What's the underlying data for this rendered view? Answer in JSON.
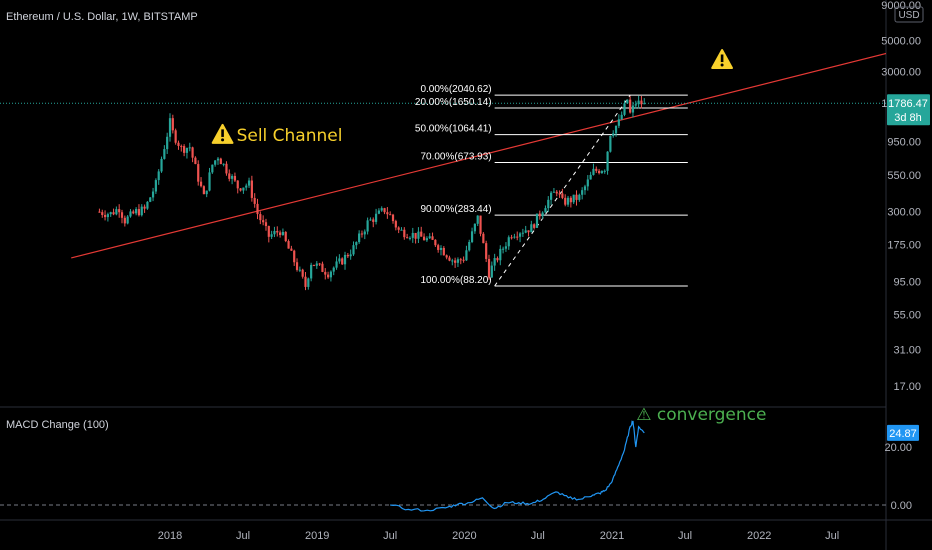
{
  "header": {
    "title": "Ethereum / U.S. Dollar, 1W, BITSTAMP",
    "currency": "USD"
  },
  "colors": {
    "background": "#000000",
    "candle_up": "#26a69a",
    "candle_down": "#ef5350",
    "trendline": "#e53935",
    "fib_lines": "#ffffff",
    "macd": "#2196f3",
    "last_price_badge": "#26a69a",
    "indicator_badge": "#2196f3",
    "warning": "#f7d02c",
    "convergence_text": "#4caf50"
  },
  "chart_data": [
    {
      "type": "candlestick",
      "title": "Ethereum / U.S. Dollar, 1W, BITSTAMP",
      "scale": "log",
      "ylim": [
        12,
        9000
      ],
      "xlim": [
        "2017-07-10",
        "2022-12-31"
      ],
      "y_ticks": [
        "9000.00",
        "5000.00",
        "3000.00",
        "1800.00",
        "950.00",
        "550.00",
        "300.00",
        "175.00",
        "95.00",
        "55.00",
        "31.00",
        "17.00"
      ],
      "y_tick_values": [
        9000,
        5000,
        3000,
        1800,
        950,
        550,
        300,
        175,
        95,
        55,
        31,
        17
      ],
      "x_ticks": [
        {
          "date": "2018-01-01",
          "label": "2018"
        },
        {
          "date": "2018-07-01",
          "label": "Jul"
        },
        {
          "date": "2019-01-01",
          "label": "2019"
        },
        {
          "date": "2019-07-01",
          "label": "Jul"
        },
        {
          "date": "2020-01-01",
          "label": "2020"
        },
        {
          "date": "2020-07-01",
          "label": "Jul"
        },
        {
          "date": "2021-01-01",
          "label": "2021"
        },
        {
          "date": "2021-07-01",
          "label": "Jul"
        },
        {
          "date": "2022-01-01",
          "label": "2022"
        },
        {
          "date": "2022-07-01",
          "label": "Jul"
        }
      ],
      "grid": false,
      "price_path": [
        {
          "date": "2017-07-10",
          "close": 300
        },
        {
          "date": "2017-08-14",
          "close": 290
        },
        {
          "date": "2017-09-04",
          "close": 320
        },
        {
          "date": "2017-09-18",
          "close": 260
        },
        {
          "date": "2017-10-16",
          "close": 300
        },
        {
          "date": "2017-11-06",
          "close": 310
        },
        {
          "date": "2017-12-04",
          "close": 470
        },
        {
          "date": "2017-12-18",
          "close": 720
        },
        {
          "date": "2018-01-08",
          "close": 1300
        },
        {
          "date": "2018-01-15",
          "close": 1100
        },
        {
          "date": "2018-02-05",
          "close": 850
        },
        {
          "date": "2018-02-26",
          "close": 870
        },
        {
          "date": "2018-03-19",
          "close": 520
        },
        {
          "date": "2018-04-02",
          "close": 380
        },
        {
          "date": "2018-04-23",
          "close": 650
        },
        {
          "date": "2018-05-07",
          "close": 750
        },
        {
          "date": "2018-05-28",
          "close": 600
        },
        {
          "date": "2018-06-25",
          "close": 450
        },
        {
          "date": "2018-07-23",
          "close": 470
        },
        {
          "date": "2018-08-13",
          "close": 290
        },
        {
          "date": "2018-09-10",
          "close": 200
        },
        {
          "date": "2018-10-08",
          "close": 220
        },
        {
          "date": "2018-11-19",
          "close": 120
        },
        {
          "date": "2018-12-10",
          "close": 88
        },
        {
          "date": "2018-12-24",
          "close": 130
        },
        {
          "date": "2019-02-04",
          "close": 110
        },
        {
          "date": "2019-03-11",
          "close": 135
        },
        {
          "date": "2019-04-08",
          "close": 165
        },
        {
          "date": "2019-05-13",
          "close": 250
        },
        {
          "date": "2019-06-24",
          "close": 310
        },
        {
          "date": "2019-07-08",
          "close": 280
        },
        {
          "date": "2019-07-29",
          "close": 220
        },
        {
          "date": "2019-09-16",
          "close": 200
        },
        {
          "date": "2019-10-28",
          "close": 180
        },
        {
          "date": "2019-12-16",
          "close": 130
        },
        {
          "date": "2020-01-06",
          "close": 140
        },
        {
          "date": "2020-02-10",
          "close": 270
        },
        {
          "date": "2020-03-09",
          "close": 110
        },
        {
          "date": "2020-03-23",
          "close": 130
        },
        {
          "date": "2020-05-04",
          "close": 210
        },
        {
          "date": "2020-06-22",
          "close": 230
        },
        {
          "date": "2020-07-27",
          "close": 340
        },
        {
          "date": "2020-08-24",
          "close": 430
        },
        {
          "date": "2020-09-07",
          "close": 350
        },
        {
          "date": "2020-10-19",
          "close": 380
        },
        {
          "date": "2020-11-23",
          "close": 580
        },
        {
          "date": "2020-12-21",
          "close": 620
        },
        {
          "date": "2021-01-04",
          "close": 1100
        },
        {
          "date": "2021-01-25",
          "close": 1300
        },
        {
          "date": "2021-02-15",
          "close": 1900
        },
        {
          "date": "2021-02-22",
          "close": 1500
        },
        {
          "date": "2021-03-08",
          "close": 1800
        },
        {
          "date": "2021-03-22",
          "close": 1786.47
        }
      ],
      "last_price": "1786.47",
      "countdown": "3d 8h",
      "annotations": [
        {
          "text": "Sell Channel",
          "date": "2018-06-25",
          "price": 900
        },
        {
          "text": "⚠",
          "date": "2021-10-01",
          "price": 3700
        }
      ],
      "trendline": {
        "from": {
          "date": "2017-05-01",
          "price": 140
        },
        "to": {
          "date": "2022-12-31",
          "price": 4400
        }
      },
      "fib_retracement": {
        "start": {
          "date": "2020-03-16",
          "price": 88.2
        },
        "end": {
          "date": "2021-02-15",
          "price": 2040.62
        },
        "x_end": "2021-07-08",
        "levels": [
          {
            "label": "0.00%(2040.62)",
            "price": 2040.62
          },
          {
            "label": "20.00%(1650.14)",
            "price": 1650.14
          },
          {
            "label": "50.00%(1064.41)",
            "price": 1064.41
          },
          {
            "label": "70.00%(673.93)",
            "price": 673.93
          },
          {
            "label": "90.00%(283.44)",
            "price": 283.44
          },
          {
            "label": "100.00%(88.20)",
            "price": 88.2
          }
        ]
      }
    },
    {
      "type": "line",
      "title": "MACD Change (100)",
      "ylim": [
        -6,
        36
      ],
      "y_ticks": [
        "20.00",
        "0.00"
      ],
      "y_tick_values": [
        20,
        0
      ],
      "zero_line": true,
      "last_value": "24.87",
      "annotation": "convergence",
      "series": [
        {
          "x": [
            "2019-07-01",
            "2019-08-15",
            "2019-10-01",
            "2019-11-15",
            "2019-12-15",
            "2020-01-15",
            "2020-02-15",
            "2020-03-15",
            "2020-04-15",
            "2020-05-15",
            "2020-06-15",
            "2020-07-15",
            "2020-08-15",
            "2020-09-15",
            "2020-10-15",
            "2020-11-15",
            "2020-12-01",
            "2020-12-15",
            "2021-01-01",
            "2021-01-15",
            "2021-02-01",
            "2021-02-15",
            "2021-02-22",
            "2021-03-01",
            "2021-03-08",
            "2021-03-22"
          ],
          "values": [
            0,
            -1.5,
            -1.8,
            -1.0,
            0.2,
            0.8,
            2.5,
            -1.2,
            0.8,
            0.8,
            0.5,
            2.0,
            4.5,
            2.5,
            2.0,
            3.5,
            4.0,
            5.0,
            8.0,
            13.0,
            19.0,
            27.0,
            29.0,
            20.0,
            27.0,
            24.87
          ]
        }
      ]
    }
  ]
}
